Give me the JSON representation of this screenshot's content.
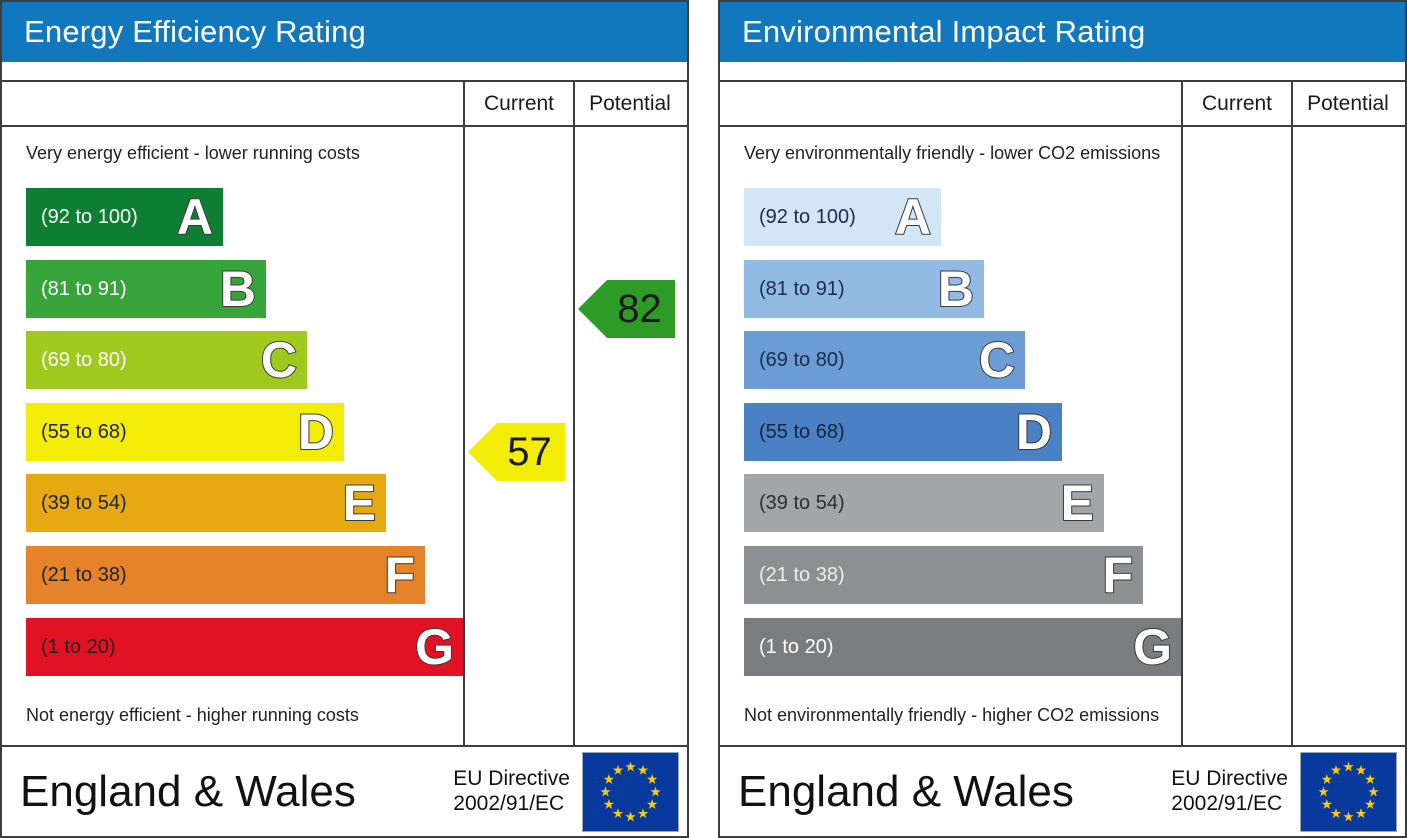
{
  "colors": {
    "header_bg": "#1278bd",
    "border_color": "#3d3d3d",
    "eu_flag_bg": "#08399c",
    "eu_star": "#ffcc00",
    "arrow_text": "#1a1a1a"
  },
  "chart_data": [
    {
      "type": "bar",
      "title": "Energy Efficiency Rating",
      "categories": [
        "A",
        "B",
        "C",
        "D",
        "E",
        "F",
        "G"
      ],
      "band_ranges": [
        "92 to 100",
        "81 to 91",
        "69 to 80",
        "55 to 68",
        "39 to 54",
        "21 to 38",
        "1 to 20"
      ],
      "band_colors": [
        "#0e7f32",
        "#36a43a",
        "#a0c91d",
        "#f3ec06",
        "#e6a912",
        "#e5832a",
        "#e11224"
      ],
      "columns": [
        "Current",
        "Potential"
      ],
      "current": 57,
      "current_band": "D",
      "potential": 82,
      "potential_band": "B",
      "top_label": "Very energy efficient - lower running costs",
      "bottom_label": "Not energy efficient - higher running costs",
      "footer": "England & Wales - EU Directive 2002/91/EC"
    },
    {
      "type": "bar",
      "title": "Environmental Impact Rating",
      "categories": [
        "A",
        "B",
        "C",
        "D",
        "E",
        "F",
        "G"
      ],
      "band_ranges": [
        "92 to 100",
        "81 to 91",
        "69 to 80",
        "55 to 68",
        "39 to 54",
        "21 to 38",
        "1 to 20"
      ],
      "band_colors": [
        "#d3e6f5",
        "#91bbe3",
        "#6b9cd4",
        "#4a80c4",
        "#a3a5a8",
        "#8d8f92",
        "#7a7d80"
      ],
      "columns": [
        "Current",
        "Potential"
      ],
      "current": null,
      "current_band": null,
      "potential": null,
      "potential_band": null,
      "top_label": "Very environmentally friendly - lower CO2 emissions",
      "bottom_label": "Not environmentally friendly - higher CO2 emissions",
      "footer": "England & Wales - EU Directive 2002/91/EC"
    }
  ],
  "panels": [
    {
      "title": "Energy Efficiency Rating",
      "columns": {
        "current": "Current",
        "potential": "Potential"
      },
      "top_note": "Very energy efficient - lower running costs",
      "bottom_note": "Not energy efficient - higher running costs",
      "bands": [
        {
          "range": "(92 to 100)",
          "letter": "A",
          "color": "#0e7f32",
          "text_color": "#ffffff"
        },
        {
          "range": "(81 to 91)",
          "letter": "B",
          "color": "#36a43a",
          "text_color": "#ffffff"
        },
        {
          "range": "(69 to 80)",
          "letter": "C",
          "color": "#a0c91d",
          "text_color": "#ffffff"
        },
        {
          "range": "(55 to 68)",
          "letter": "D",
          "color": "#f3ec06",
          "text_color": "#222222"
        },
        {
          "range": "(39 to 54)",
          "letter": "E",
          "color": "#e6a912",
          "text_color": "#222222"
        },
        {
          "range": "(21 to 38)",
          "letter": "F",
          "color": "#e5832a",
          "text_color": "#222222"
        },
        {
          "range": "(1 to 20)",
          "letter": "G",
          "color": "#e11224",
          "text_color": "#222222"
        }
      ],
      "current": {
        "value": "57",
        "color": "#f3ec06",
        "band_index": 3
      },
      "potential": {
        "value": "82",
        "color": "#2e9b27",
        "band_index": 1
      },
      "footer": {
        "region": "England & Wales",
        "directive_line1": "EU Directive",
        "directive_line2": "2002/91/EC"
      }
    },
    {
      "title": "Environmental Impact Rating",
      "columns": {
        "current": "Current",
        "potential": "Potential"
      },
      "top_note": "Very environmentally friendly - lower CO2 emissions",
      "bottom_note": "Not environmentally friendly - higher CO2 emissions",
      "bands": [
        {
          "range": "(92 to 100)",
          "letter": "A",
          "color": "#d3e6f5",
          "text_color": "#1b2d4e"
        },
        {
          "range": "(81 to 91)",
          "letter": "B",
          "color": "#91bbe3",
          "text_color": "#1b2d4e"
        },
        {
          "range": "(69 to 80)",
          "letter": "C",
          "color": "#6b9cd4",
          "text_color": "#1b2d4e"
        },
        {
          "range": "(55 to 68)",
          "letter": "D",
          "color": "#4a80c4",
          "text_color": "#16243d"
        },
        {
          "range": "(39 to 54)",
          "letter": "E",
          "color": "#a3a5a8",
          "text_color": "#2e2e2e"
        },
        {
          "range": "(21 to 38)",
          "letter": "F",
          "color": "#8d8f92",
          "text_color": "#eeeeee"
        },
        {
          "range": "(1 to 20)",
          "letter": "G",
          "color": "#7a7d80",
          "text_color": "#ffffff"
        }
      ],
      "current": null,
      "potential": null,
      "footer": {
        "region": "England & Wales",
        "directive_line1": "EU Directive",
        "directive_line2": "2002/91/EC"
      }
    }
  ]
}
